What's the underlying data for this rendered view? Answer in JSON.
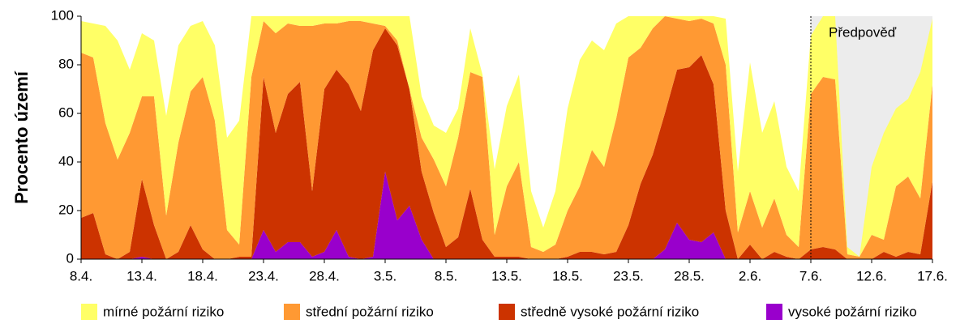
{
  "chart_data": {
    "type": "stacked-area",
    "y_label": "Procento území",
    "annotation": "Předpověď",
    "forecast_start": "7.6.",
    "categories": [
      "8.4.",
      null,
      null,
      null,
      null,
      "13.4.",
      null,
      null,
      null,
      null,
      "18.4.",
      null,
      null,
      null,
      null,
      "23.4.",
      null,
      null,
      null,
      null,
      "28.4.",
      null,
      null,
      null,
      null,
      "3.5.",
      null,
      null,
      null,
      null,
      "8.5.",
      null,
      null,
      null,
      null,
      "13.5.",
      null,
      null,
      null,
      null,
      "18.5.",
      null,
      null,
      null,
      null,
      "23.5.",
      null,
      null,
      null,
      null,
      "28.5.",
      null,
      null,
      null,
      null,
      "2.6.",
      null,
      null,
      null,
      null,
      "7.6.",
      null,
      null,
      null,
      null,
      "12.6.",
      null,
      null,
      null,
      null,
      "17.6."
    ],
    "series": [
      {
        "name": "mírné požární riziko",
        "color": "#ffff66",
        "values": [
          13,
          14,
          40,
          49,
          26,
          26,
          23,
          41,
          40,
          27,
          23,
          31,
          38,
          51,
          25,
          2,
          7,
          3,
          4,
          4,
          3,
          3,
          2,
          2,
          3,
          4,
          10,
          30,
          17,
          14,
          22,
          12,
          18,
          1,
          27,
          33,
          36,
          23,
          10,
          22,
          42,
          52,
          45,
          48,
          39,
          17,
          13,
          5,
          0,
          1,
          2,
          1,
          3,
          19,
          25,
          53,
          39,
          40,
          28,
          23,
          24,
          25,
          26,
          3,
          0,
          28,
          44,
          32,
          32,
          52,
          27
        ]
      },
      {
        "name": "střední požární riziko",
        "color": "#ff9933",
        "values": [
          68,
          64,
          54,
          41,
          49,
          34,
          53,
          18,
          45,
          55,
          71,
          57,
          12,
          5,
          74,
          23,
          41,
          29,
          23,
          68,
          27,
          19,
          26,
          37,
          11,
          1,
          2,
          0,
          14,
          22,
          25,
          41,
          48,
          67,
          9,
          29,
          39,
          5,
          3,
          6,
          19,
          27,
          42,
          36,
          55,
          69,
          56,
          52,
          40,
          21,
          19,
          15,
          25,
          60,
          11,
          22,
          13,
          22,
          9,
          5,
          64,
          70,
          70,
          2,
          1,
          10,
          5,
          29,
          31,
          23,
          40
        ]
      },
      {
        "name": "středně vysoké požární riziko",
        "color": "#cc3300",
        "values": [
          17,
          19,
          2,
          0,
          3,
          32,
          14,
          0,
          3,
          14,
          4,
          0,
          0,
          1,
          1,
          63,
          49,
          61,
          66,
          27,
          67,
          66,
          71,
          61,
          85,
          59,
          72,
          48,
          28,
          19,
          5,
          9,
          29,
          8,
          1,
          1,
          1,
          0,
          0,
          0,
          1,
          3,
          3,
          2,
          3,
          14,
          31,
          43,
          56,
          63,
          71,
          77,
          61,
          20,
          0,
          6,
          0,
          3,
          1,
          0,
          4,
          5,
          4,
          0,
          0,
          0,
          3,
          1,
          3,
          2,
          32
        ]
      },
      {
        "name": "vysoké požární riziko",
        "color": "#9900cc",
        "values": [
          0,
          0,
          0,
          0,
          0,
          1,
          0,
          0,
          0,
          0,
          0,
          0,
          0,
          0,
          0,
          12,
          3,
          7,
          7,
          1,
          3,
          12,
          1,
          0,
          1,
          36,
          16,
          22,
          8,
          0,
          0,
          0,
          0,
          0,
          0,
          0,
          0,
          0,
          0,
          0,
          0,
          0,
          0,
          0,
          0,
          0,
          0,
          0,
          4,
          15,
          8,
          7,
          11,
          0,
          0,
          0,
          0,
          0,
          0,
          0,
          0,
          0,
          0,
          0,
          0,
          0,
          0,
          0,
          0,
          0,
          0
        ]
      }
    ],
    "ylim": [
      0,
      100
    ],
    "yticks": [
      0,
      20,
      40,
      60,
      80,
      100
    ],
    "grid": false
  }
}
